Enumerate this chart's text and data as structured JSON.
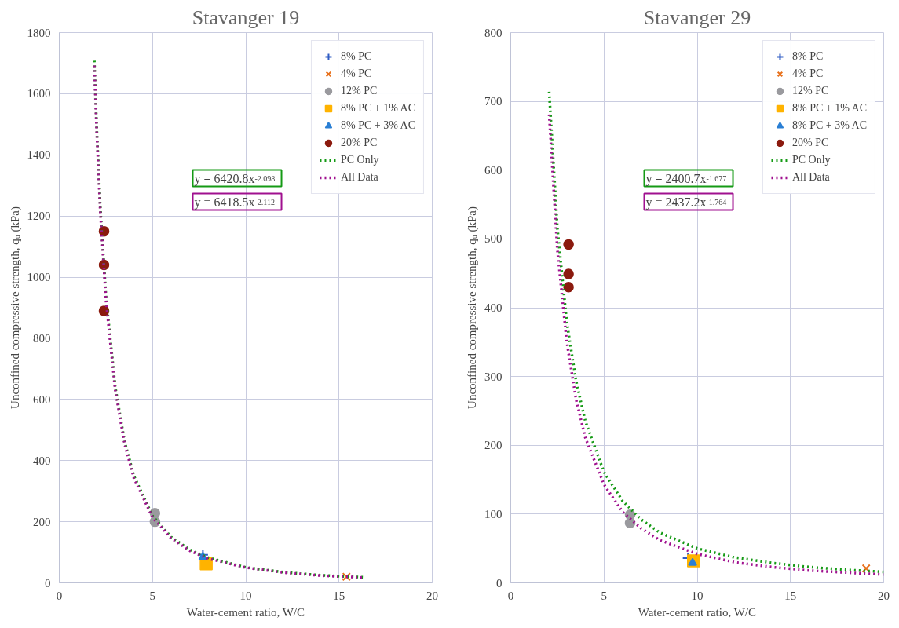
{
  "chart_data": [
    {
      "type": "scatter",
      "title": "Stavanger 19",
      "xlabel": "Water-cement ratio, W/C",
      "ylabel": "Unconfined compressive strength, qᵤ (kPa)",
      "xlim": [
        0,
        20
      ],
      "ylim": [
        0,
        1800
      ],
      "xticks": [
        0,
        5,
        10,
        15,
        20
      ],
      "yticks": [
        0,
        200,
        400,
        600,
        800,
        1000,
        1200,
        1400,
        1600,
        1800
      ],
      "grid": true,
      "legend": "top right",
      "annotations": [
        "y = 6420.8x$^{-2.098}$",
        "y = 6418.5x$^{-2.112}$"
      ],
      "series": [
        {
          "name": "8% PC",
          "color": "#2f5cc4",
          "marker": "cross",
          "x": [
            7.7
          ],
          "values": [
            92
          ]
        },
        {
          "name": "4% PC",
          "color": "#e8711c",
          "marker": "x",
          "x": [
            15.4
          ],
          "values": [
            20
          ]
        },
        {
          "name": "12% PC",
          "color": "#9a9a9e",
          "marker": "circle",
          "x": [
            5.13,
            5.13
          ],
          "values": [
            228,
            200
          ]
        },
        {
          "name": "8% PC + 1% AC",
          "color": "#ffb300",
          "marker": "square",
          "x": [
            7.88
          ],
          "values": [
            62
          ]
        },
        {
          "name": "8% PC + 3% AC",
          "color": "#2a7fd4",
          "marker": "triangle",
          "x": [
            7.7
          ],
          "values": [
            85
          ]
        },
        {
          "name": "20% PC",
          "color": "#8b1a0e",
          "marker": "circle",
          "x": [
            2.4,
            2.4,
            2.4
          ],
          "values": [
            1150,
            1040,
            890
          ]
        },
        {
          "name": "PC Only",
          "type": "line",
          "line_style": "dotted",
          "color": "#159a15",
          "x": [
            1.88,
            2,
            2.2,
            2.5,
            3,
            3.5,
            4,
            5,
            6,
            7,
            8,
            10,
            12,
            14,
            16.4
          ],
          "values": [
            1708,
            1500,
            1228,
            939,
            641,
            463,
            350,
            219,
            150,
            108,
            82,
            51,
            35,
            25,
            18
          ]
        },
        {
          "name": "All Data",
          "type": "line",
          "line_style": "dotted",
          "color": "#a0108f",
          "x": [
            1.88,
            2,
            2.2,
            2.5,
            3,
            3.5,
            4,
            5,
            6,
            7,
            8,
            10,
            12,
            14,
            16.4
          ],
          "values": [
            1692,
            1485,
            1214,
            927,
            631,
            455,
            343,
            214,
            146,
            105,
            79,
            50,
            34,
            24,
            17
          ]
        }
      ]
    },
    {
      "type": "scatter",
      "title": "Stavanger 29",
      "xlabel": "Water-cement ratio, W/C",
      "ylabel": "Unconfined compressive strength, qᵤ (kPa)",
      "xlim": [
        0,
        20
      ],
      "ylim": [
        0,
        800
      ],
      "xticks": [
        0,
        5,
        10,
        15,
        20
      ],
      "yticks": [
        0,
        100,
        200,
        300,
        400,
        500,
        600,
        700,
        800
      ],
      "grid": true,
      "legend": "top right",
      "annotations": [
        "y = 2400.7x$^{-1.677}$",
        "y = 2437.2x$^{-1.764}$"
      ],
      "series": [
        {
          "name": "8% PC",
          "color": "#2f5cc4",
          "marker": "cross",
          "x": [
            9.5
          ],
          "values": [
            36
          ]
        },
        {
          "name": "4% PC",
          "color": "#e8711c",
          "marker": "x",
          "x": [
            19.06
          ],
          "values": [
            21
          ]
        },
        {
          "name": "12% PC",
          "color": "#9a9a9e",
          "marker": "circle",
          "x": [
            6.4,
            6.4
          ],
          "values": [
            99,
            87
          ]
        },
        {
          "name": "8% PC + 1% AC",
          "color": "#ffb300",
          "marker": "square",
          "x": [
            9.8
          ],
          "values": [
            32
          ]
        },
        {
          "name": "8% PC + 3% AC",
          "color": "#2a7fd4",
          "marker": "triangle",
          "x": [
            9.75
          ],
          "values": [
            29
          ]
        },
        {
          "name": "20% PC",
          "color": "#8b1a0e",
          "marker": "circle",
          "x": [
            3.1,
            3.1,
            3.1
          ],
          "values": [
            492,
            449,
            430
          ]
        },
        {
          "name": "PC Only",
          "type": "line",
          "line_style": "dotted",
          "color": "#159a15",
          "x": [
            2.06,
            2.5,
            3,
            3.5,
            4,
            5,
            6,
            7,
            8,
            10,
            12,
            14,
            16,
            18,
            20
          ],
          "values": [
            714,
            516,
            380,
            294,
            235,
            161,
            119,
            92,
            73,
            50,
            37,
            29,
            23,
            19,
            16
          ]
        },
        {
          "name": "All Data",
          "type": "line",
          "line_style": "dotted",
          "color": "#a0108f",
          "x": [
            2.06,
            2.5,
            3,
            3.5,
            4,
            5,
            6,
            7,
            8,
            10,
            12,
            14,
            16,
            18,
            20
          ],
          "values": [
            681,
            484,
            351,
            267,
            211,
            143,
            103,
            79,
            62,
            42,
            30,
            23,
            18,
            15,
            12
          ]
        }
      ]
    }
  ]
}
